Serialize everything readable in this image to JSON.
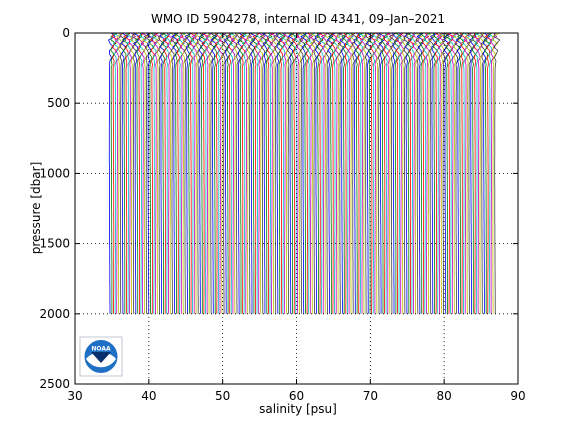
{
  "chart_data": {
    "type": "line",
    "title": "WMO ID 5904278, internal ID 4341, 09–Jan–2021",
    "xlabel": "salinity [psu]",
    "ylabel": "pressure [dbar]",
    "xlim": [
      30,
      90
    ],
    "ylim": [
      0,
      2500
    ],
    "y_reversed": true,
    "xticks": [
      30,
      40,
      50,
      60,
      70,
      80,
      90
    ],
    "yticks": [
      0,
      500,
      1000,
      1500,
      2000,
      2500
    ],
    "grid": "dotted",
    "description": "Waterfall of successive salinity profiles, each offset along the salinity axis",
    "profiles": {
      "count": 210,
      "x_first": 34.7,
      "x_last": 86.9,
      "pressure_top": 0,
      "pressure_bottom": 2000,
      "colors": [
        "#0000ff",
        "#008000",
        "#ff0000",
        "#00bfbf",
        "#bf00bf",
        "#bfbf00",
        "#404040"
      ]
    },
    "logo": "NOAA"
  }
}
